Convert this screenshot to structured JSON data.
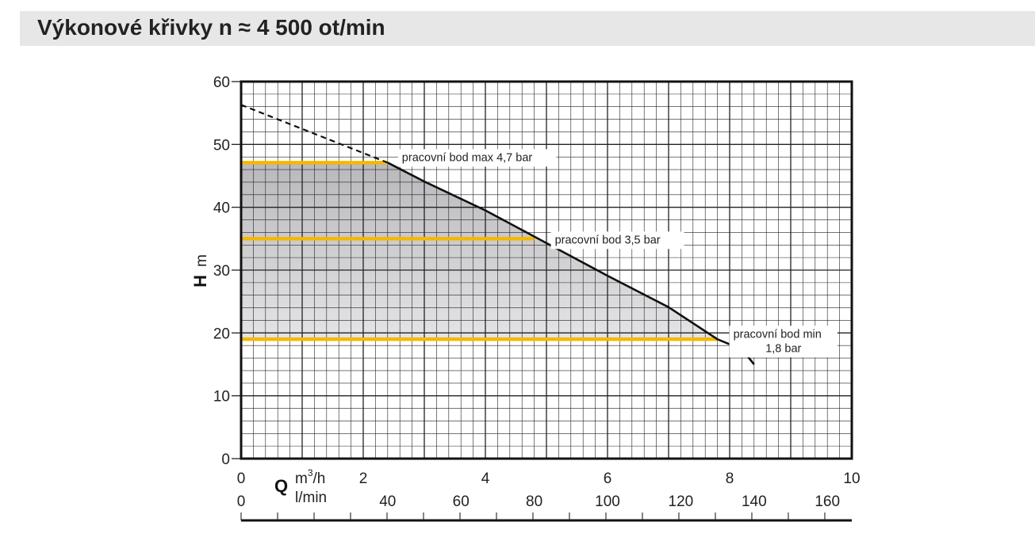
{
  "title": "Výkonové křivky n ≈ 4 500 ot/min",
  "colors": {
    "grid": "#222222",
    "operating_line": "#f5b800",
    "fill": "#c8c8c8",
    "curve": "#111111"
  },
  "chart_data": {
    "type": "line",
    "title": "Výkonové křivky n ≈ 4 500 ot/min",
    "ylabel": "H",
    "yunit": "m",
    "xlabel": "Q",
    "xunit_primary": "m3/h",
    "xunit_secondary": "l/min",
    "ylim": [
      0,
      60
    ],
    "xlim": [
      0,
      10
    ],
    "grid": true,
    "y_ticks": [
      "0",
      "10",
      "20",
      "30",
      "40",
      "50",
      "60"
    ],
    "x_ticks_primary": [
      "0",
      "2",
      "4",
      "6",
      "8",
      "10"
    ],
    "x_ticks_secondary": [
      {
        "q_m3h": 0,
        "label": "0"
      },
      {
        "q_m3h": 2.4,
        "label": "40"
      },
      {
        "q_m3h": 3.6,
        "label": "60"
      },
      {
        "q_m3h": 4.8,
        "label": "80"
      },
      {
        "q_m3h": 6.0,
        "label": "100"
      },
      {
        "q_m3h": 7.2,
        "label": "120"
      },
      {
        "q_m3h": 8.4,
        "label": "140"
      },
      {
        "q_m3h": 9.6,
        "label": "160"
      }
    ],
    "curve_extrapolated": [
      {
        "x": 0,
        "y": 56.3
      },
      {
        "x": 2.4,
        "y": 47.1
      }
    ],
    "curve": [
      {
        "x": 2.4,
        "y": 47.1
      },
      {
        "x": 3.0,
        "y": 44.1
      },
      {
        "x": 4.0,
        "y": 39.5
      },
      {
        "x": 5.0,
        "y": 34.3
      },
      {
        "x": 6.0,
        "y": 29.1
      },
      {
        "x": 7.0,
        "y": 24.1
      },
      {
        "x": 7.8,
        "y": 19.0
      },
      {
        "x": 8.2,
        "y": 17.4
      },
      {
        "x": 8.4,
        "y": 15.0
      }
    ],
    "operating_points": [
      {
        "label": "pracovní bod max 4,7 bar",
        "lines": [
          "pracovní bod max 4,7 bar"
        ],
        "h": 47.1,
        "q": 2.4
      },
      {
        "label": "pracovní bod 3,5 bar",
        "lines": [
          "pracovní bod 3,5 bar"
        ],
        "h": 35.0,
        "q": 4.8
      },
      {
        "label": "pracovní bod min 1,8 bar",
        "lines": [
          "pracovní bod min",
          "1,8 bar"
        ],
        "h": 19.0,
        "q": 7.8
      }
    ]
  }
}
